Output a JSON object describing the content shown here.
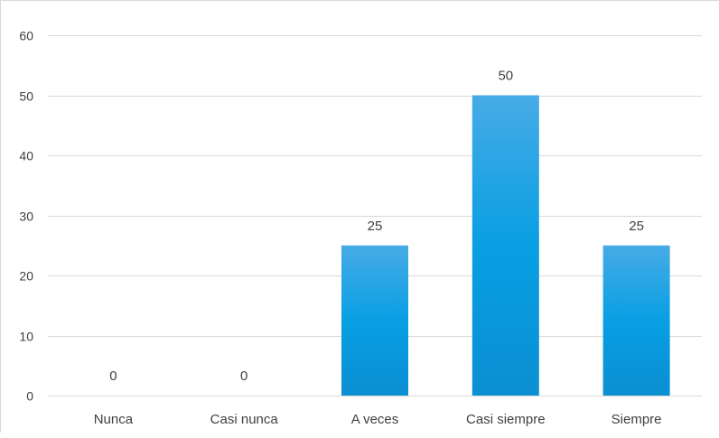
{
  "chart_data": {
    "type": "bar",
    "categories": [
      "Nunca",
      "Casi nunca",
      "A veces",
      "Casi siempre",
      "Siempre"
    ],
    "values": [
      0,
      0,
      25,
      50,
      25
    ],
    "data_labels": [
      "0",
      "0",
      "25",
      "50",
      "25"
    ],
    "yticks": [
      "0",
      "10",
      "20",
      "30",
      "40",
      "50",
      "60"
    ],
    "ylim": [
      0,
      60
    ],
    "title": "",
    "xlabel": "",
    "ylabel": "",
    "grid": true,
    "legend": "none",
    "colors": {
      "bar_top": "#47abe6",
      "bar_bottom": "#0a8fd2",
      "gridline": "#d9d9d9",
      "axis_text": "#404040",
      "label_text": "#404040"
    }
  }
}
